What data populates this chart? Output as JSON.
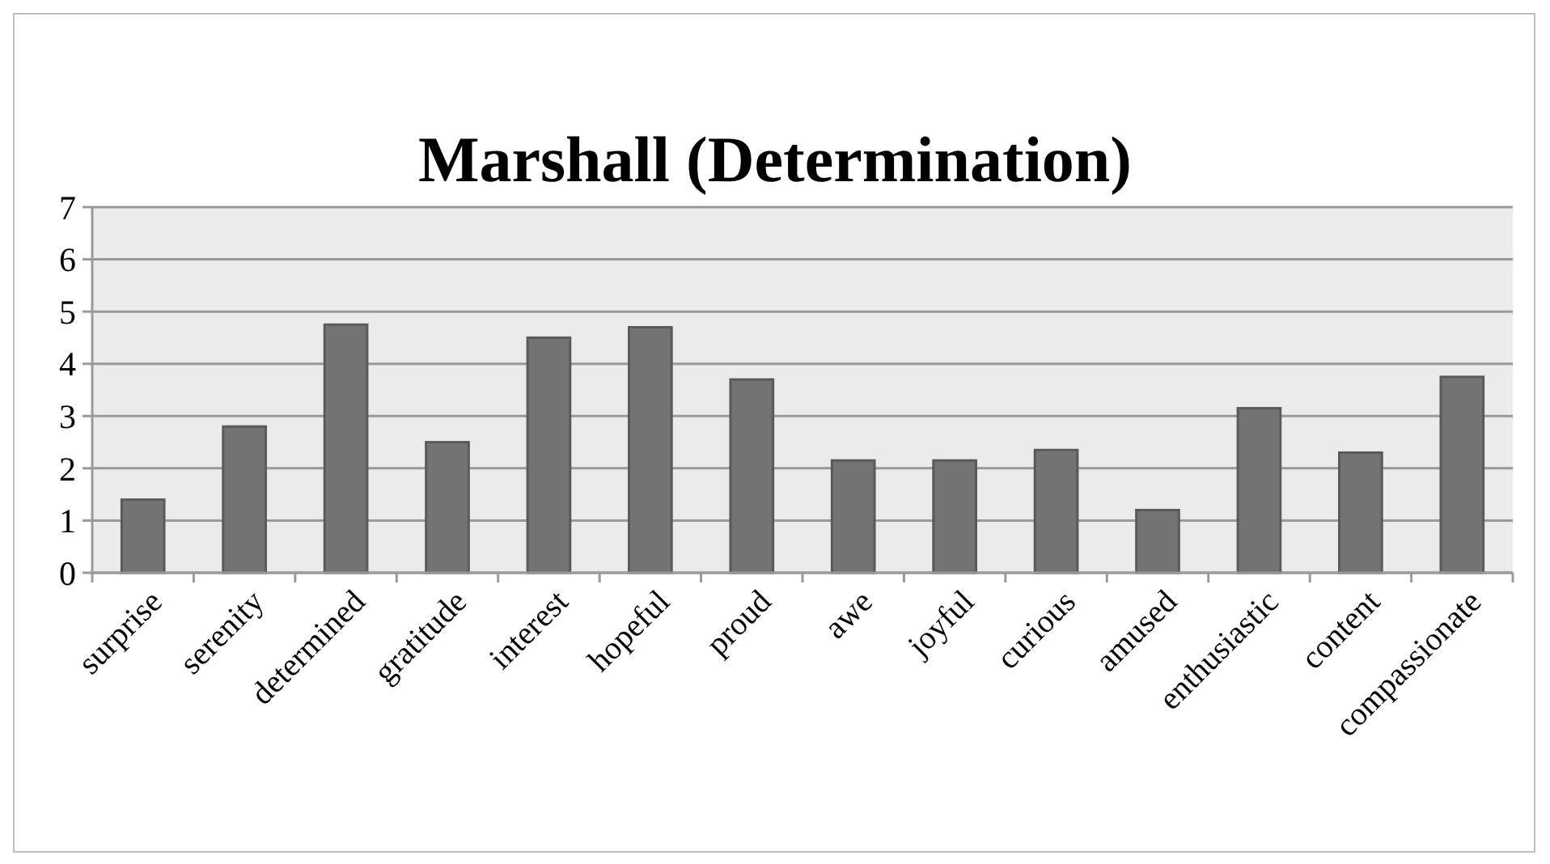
{
  "chart_data": {
    "type": "bar",
    "title": "Marshall (Determination)",
    "categories": [
      "surprise",
      "serenity",
      "determined",
      "gratitude",
      "interest",
      "hopeful",
      "proud",
      "awe",
      "joyful",
      "curious",
      "amused",
      "enthusiastic",
      "content",
      "compassionate"
    ],
    "values": [
      1.4,
      2.8,
      4.75,
      2.5,
      4.5,
      4.7,
      3.7,
      2.15,
      2.15,
      2.35,
      1.2,
      3.15,
      2.3,
      3.75
    ],
    "color": "#737373",
    "ylim": [
      0,
      7
    ],
    "yticks": [
      0,
      1,
      2,
      3,
      4,
      5,
      6,
      7
    ],
    "grid": "y"
  }
}
